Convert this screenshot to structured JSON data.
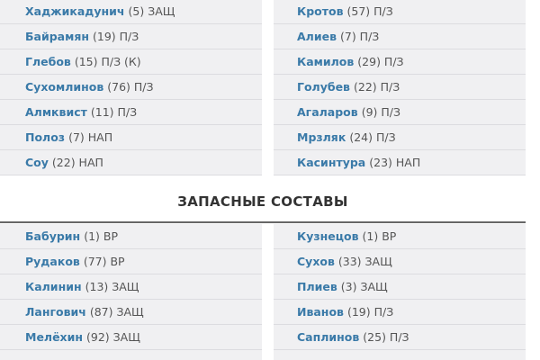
{
  "starters": {
    "home": [
      {
        "name": "Хаджикадунич",
        "info": "(5) ЗАЩ"
      },
      {
        "name": "Байрамян",
        "info": "(19) П/З"
      },
      {
        "name": "Глебов",
        "info": "(15) П/З (К)"
      },
      {
        "name": "Сухомлинов",
        "info": "(76) П/З"
      },
      {
        "name": "Алмквист",
        "info": "(11) П/З"
      },
      {
        "name": "Полоз",
        "info": "(7) НАП"
      },
      {
        "name": "Соу",
        "info": "(22) НАП"
      }
    ],
    "away": [
      {
        "name": "Кротов",
        "info": "(57) П/З"
      },
      {
        "name": "Алиев",
        "info": "(7) П/З"
      },
      {
        "name": "Камилов",
        "info": "(29) П/З"
      },
      {
        "name": "Голубев",
        "info": "(22) П/З"
      },
      {
        "name": "Агаларов",
        "info": "(9) П/З"
      },
      {
        "name": "Мрзляк",
        "info": "(24) П/З"
      },
      {
        "name": "Касинтура",
        "info": "(23) НАП"
      }
    ]
  },
  "subs_heading": "ЗАПАСНЫЕ СОСТАВЫ",
  "subs": {
    "home": [
      {
        "name": "Бабурин",
        "info": "(1) ВР"
      },
      {
        "name": "Рудаков",
        "info": "(77) ВР"
      },
      {
        "name": "Калинин",
        "info": "(13) ЗАЩ"
      },
      {
        "name": "Лангович",
        "info": "(87) ЗАЩ"
      },
      {
        "name": "Мелёхин",
        "info": "(92) ЗАЩ"
      },
      {
        "name": "",
        "info": ""
      }
    ],
    "away": [
      {
        "name": "Кузнецов",
        "info": "(1) ВР"
      },
      {
        "name": "Сухов",
        "info": "(33) ЗАЩ"
      },
      {
        "name": "Плиев",
        "info": "(3) ЗАЩ"
      },
      {
        "name": "Иванов",
        "info": "(19) П/З"
      },
      {
        "name": "Саплинов",
        "info": "(25) П/З"
      },
      {
        "name": "",
        "info": ""
      }
    ]
  },
  "colors": {
    "player_name": "#3a7aa8",
    "row_bg": "#f0f0f2",
    "text": "#555555"
  }
}
